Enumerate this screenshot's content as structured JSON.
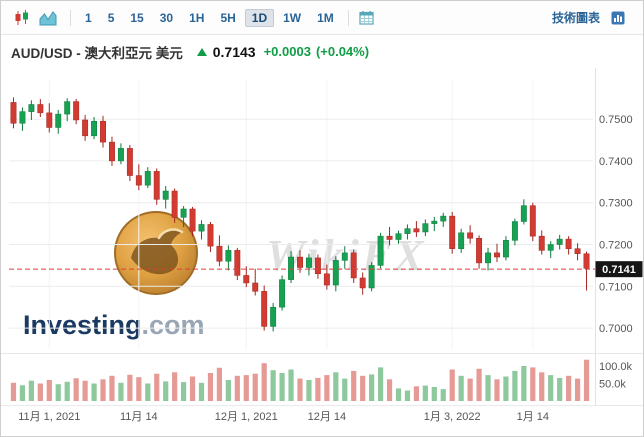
{
  "toolbar": {
    "timeframes": [
      "1",
      "5",
      "15",
      "30",
      "1H",
      "5H",
      "1D",
      "1W",
      "1M"
    ],
    "active_timeframe": "1D",
    "right_link": "技術圖表"
  },
  "header": {
    "title": "AUD/USD - 澳大利亞元 美元",
    "price": "0.7143",
    "change": "+0.0003",
    "change_pct": "(+0.04%)",
    "direction": "up"
  },
  "watermarks": {
    "site": "WikiFX",
    "brand": "Investing",
    "brand_suffix": ".com"
  },
  "chart_data": {
    "type": "candlestick+volume",
    "title": "AUD/USD daily candlestick chart with volume",
    "price_range": [
      0.695,
      0.7596
    ],
    "y_axis_labels": [
      {
        "value": 0.75,
        "label": "0.7500"
      },
      {
        "value": 0.74,
        "label": "0.7400"
      },
      {
        "value": 0.73,
        "label": "0.7300"
      },
      {
        "value": 0.72,
        "label": "0.7200"
      },
      {
        "value": 0.71,
        "label": "0.7100"
      },
      {
        "value": 0.7,
        "label": "0.7000"
      }
    ],
    "current_price_line": 0.7141,
    "current_price_label": "0.7141",
    "x_ticks": [
      {
        "index": 4,
        "label": "11月 1, 2021"
      },
      {
        "index": 14,
        "label": "11月 14"
      },
      {
        "index": 26,
        "label": "12月 1, 2021"
      },
      {
        "index": 35,
        "label": "12月 14"
      },
      {
        "index": 49,
        "label": "1月 3, 2022"
      },
      {
        "index": 58,
        "label": "1月 14"
      }
    ],
    "volume_axis_labels": [
      {
        "value": 100,
        "label": "100.0k"
      },
      {
        "value": 50,
        "label": "50.0k"
      }
    ],
    "candles": [
      [
        0.754,
        0.7552,
        0.7478,
        0.749
      ],
      [
        0.749,
        0.7528,
        0.7472,
        0.7518
      ],
      [
        0.7518,
        0.7545,
        0.7498,
        0.7535
      ],
      [
        0.7535,
        0.7548,
        0.7505,
        0.7515
      ],
      [
        0.7515,
        0.7538,
        0.7468,
        0.748
      ],
      [
        0.748,
        0.7522,
        0.7465,
        0.7512
      ],
      [
        0.7512,
        0.755,
        0.7495,
        0.7542
      ],
      [
        0.7542,
        0.7548,
        0.7488,
        0.7498
      ],
      [
        0.7498,
        0.751,
        0.7448,
        0.746
      ],
      [
        0.746,
        0.7505,
        0.7452,
        0.7495
      ],
      [
        0.7495,
        0.7508,
        0.7432,
        0.7445
      ],
      [
        0.7445,
        0.7458,
        0.7388,
        0.74
      ],
      [
        0.74,
        0.7442,
        0.7392,
        0.743
      ],
      [
        0.743,
        0.7438,
        0.7352,
        0.7365
      ],
      [
        0.7365,
        0.7392,
        0.733,
        0.7342
      ],
      [
        0.7342,
        0.7385,
        0.7335,
        0.7375
      ],
      [
        0.7375,
        0.7382,
        0.7295,
        0.7308
      ],
      [
        0.7308,
        0.734,
        0.7286,
        0.7328
      ],
      [
        0.7328,
        0.7334,
        0.7252,
        0.7265
      ],
      [
        0.7265,
        0.7292,
        0.7242,
        0.7285
      ],
      [
        0.7285,
        0.729,
        0.722,
        0.7232
      ],
      [
        0.7232,
        0.7258,
        0.7212,
        0.7248
      ],
      [
        0.7248,
        0.7254,
        0.7182,
        0.7196
      ],
      [
        0.7196,
        0.7222,
        0.7148,
        0.716
      ],
      [
        0.716,
        0.7198,
        0.7138,
        0.7186
      ],
      [
        0.7186,
        0.7192,
        0.7115,
        0.7126
      ],
      [
        0.7126,
        0.7148,
        0.7098,
        0.7108
      ],
      [
        0.7108,
        0.7142,
        0.7078,
        0.7088
      ],
      [
        0.7088,
        0.7102,
        0.6994,
        0.7004
      ],
      [
        0.7004,
        0.706,
        0.6992,
        0.705
      ],
      [
        0.705,
        0.7126,
        0.7042,
        0.7116
      ],
      [
        0.7116,
        0.7184,
        0.7108,
        0.717
      ],
      [
        0.717,
        0.7186,
        0.7132,
        0.7145
      ],
      [
        0.7145,
        0.7178,
        0.7126,
        0.7168
      ],
      [
        0.7168,
        0.7176,
        0.7118,
        0.713
      ],
      [
        0.713,
        0.7152,
        0.7092,
        0.7103
      ],
      [
        0.7103,
        0.7172,
        0.7088,
        0.7162
      ],
      [
        0.7162,
        0.7196,
        0.7142,
        0.718
      ],
      [
        0.718,
        0.7188,
        0.7108,
        0.712
      ],
      [
        0.712,
        0.7133,
        0.708,
        0.7096
      ],
      [
        0.7096,
        0.7158,
        0.7088,
        0.715
      ],
      [
        0.715,
        0.7228,
        0.7143,
        0.722
      ],
      [
        0.722,
        0.7242,
        0.7198,
        0.7212
      ],
      [
        0.7212,
        0.7233,
        0.7202,
        0.7226
      ],
      [
        0.7226,
        0.7248,
        0.7212,
        0.7238
      ],
      [
        0.7238,
        0.7256,
        0.7218,
        0.723
      ],
      [
        0.723,
        0.726,
        0.722,
        0.725
      ],
      [
        0.725,
        0.7266,
        0.7232,
        0.7256
      ],
      [
        0.7256,
        0.7276,
        0.7242,
        0.7268
      ],
      [
        0.7268,
        0.7278,
        0.7178,
        0.719
      ],
      [
        0.719,
        0.7238,
        0.718,
        0.7228
      ],
      [
        0.7228,
        0.7246,
        0.7202,
        0.7215
      ],
      [
        0.7215,
        0.7222,
        0.7142,
        0.7156
      ],
      [
        0.7156,
        0.7192,
        0.7138,
        0.718
      ],
      [
        0.718,
        0.7202,
        0.7158,
        0.717
      ],
      [
        0.717,
        0.722,
        0.7162,
        0.721
      ],
      [
        0.721,
        0.7262,
        0.7198,
        0.7255
      ],
      [
        0.7255,
        0.7308,
        0.7248,
        0.7293
      ],
      [
        0.7293,
        0.73,
        0.7208,
        0.722
      ],
      [
        0.722,
        0.7234,
        0.7176,
        0.7186
      ],
      [
        0.7186,
        0.7208,
        0.7168,
        0.72
      ],
      [
        0.72,
        0.7223,
        0.7188,
        0.7213
      ],
      [
        0.7213,
        0.722,
        0.7176,
        0.719
      ],
      [
        0.719,
        0.7203,
        0.7162,
        0.7178
      ],
      [
        0.7178,
        0.7183,
        0.709,
        0.7143
      ]
    ],
    "volumes_k": [
      52,
      45,
      58,
      50,
      60,
      48,
      55,
      65,
      58,
      50,
      62,
      72,
      52,
      75,
      68,
      50,
      78,
      56,
      82,
      54,
      70,
      52,
      80,
      95,
      60,
      72,
      74,
      78,
      108,
      88,
      80,
      90,
      64,
      60,
      66,
      74,
      82,
      64,
      86,
      72,
      76,
      96,
      62,
      36,
      30,
      42,
      44,
      40,
      34,
      90,
      72,
      64,
      92,
      74,
      62,
      70,
      86,
      100,
      96,
      82,
      74,
      66,
      72,
      64,
      118
    ],
    "colors": {
      "up": "#17a253",
      "up_border": "#0c7a3b",
      "down": "#d13b32",
      "down_border": "#a32620",
      "volume_up": "#8ec99e",
      "volume_down": "#e59a96",
      "dashed_line": "#e03c3c",
      "grid": "#ececec",
      "axis_text": "#555555",
      "price_tag_bg": "#161616",
      "price_tag_text": "#ffffff"
    },
    "legend_position": "none",
    "grid": true
  }
}
